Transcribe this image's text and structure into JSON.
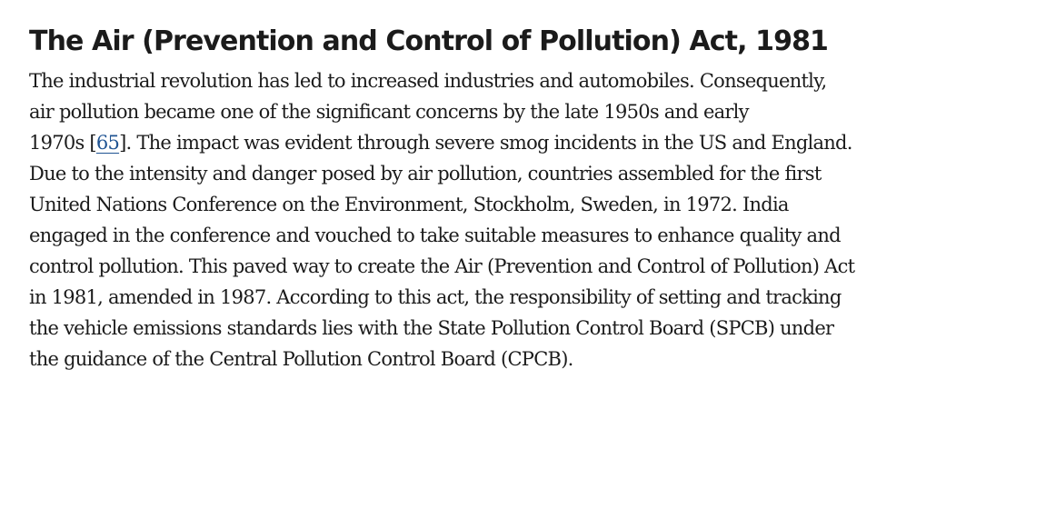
{
  "section": {
    "title": "The Air (Prevention and Control of Pollution) Act, 1981",
    "lines": [
      "The industrial revolution has led to increased industries and automobiles. Consequently,",
      "air pollution became one of the significant concerns by the late 1950s and early",
      "Due to the intensity and danger posed by air pollution, countries assembled for the first",
      "United Nations Conference on the Environment, Stockholm, Sweden, in 1972. India",
      "engaged in the conference and vouched to take suitable measures to enhance quality and",
      "control pollution. This paved way to create the Air (Prevention and Control of Pollution) Act",
      "in 1981, amended in 1987. According to this act, the responsibility of setting and tracking",
      "the vehicle emissions standards lies with the State Pollution Control Board (SPCB) under",
      "the guidance of the Central Pollution Control Board (CPCB)."
    ],
    "citation_line": {
      "before": "1970s [",
      "ref": "65",
      "after": "]. The impact was evident through severe smog incidents in the US and England."
    }
  },
  "colors": {
    "text": "#1b1b1b",
    "link": "#205493",
    "background": "#ffffff"
  }
}
